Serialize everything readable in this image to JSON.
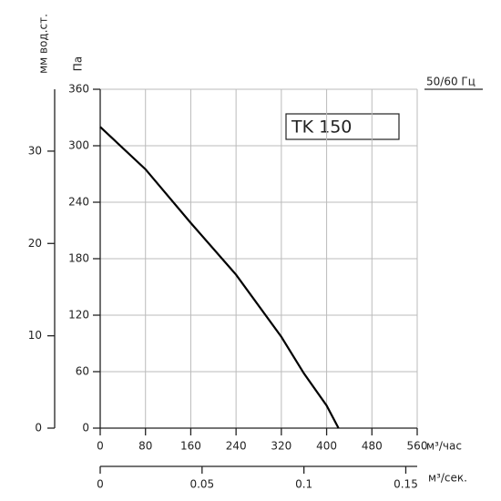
{
  "chart_data": {
    "type": "line",
    "title": "TK 150",
    "frequency_label": "50/60 Гц",
    "x_label": "м³/час",
    "y_label": "Па",
    "y2_label": "мм вод.ст.",
    "x2_label": "м³/сек.",
    "x": [
      0,
      80,
      160,
      240,
      320,
      360,
      400,
      421
    ],
    "series": [
      {
        "color": "#000000",
        "values": [
          320,
          275,
          218,
          163,
          97,
          58,
          24,
          0
        ]
      }
    ],
    "xlim": [
      0,
      560
    ],
    "xticks": [
      0,
      80,
      160,
      240,
      320,
      400,
      480,
      560
    ],
    "ylim": [
      0,
      360
    ],
    "yticks": [
      0,
      60,
      120,
      180,
      240,
      300,
      360
    ],
    "y2lim": [
      0,
      36.7
    ],
    "y2ticks": [
      0,
      10,
      20,
      30
    ],
    "x2lim": [
      0,
      0.1556
    ],
    "x2ticks": [
      0,
      0.05,
      0.1,
      0.15
    ],
    "grid": true
  }
}
